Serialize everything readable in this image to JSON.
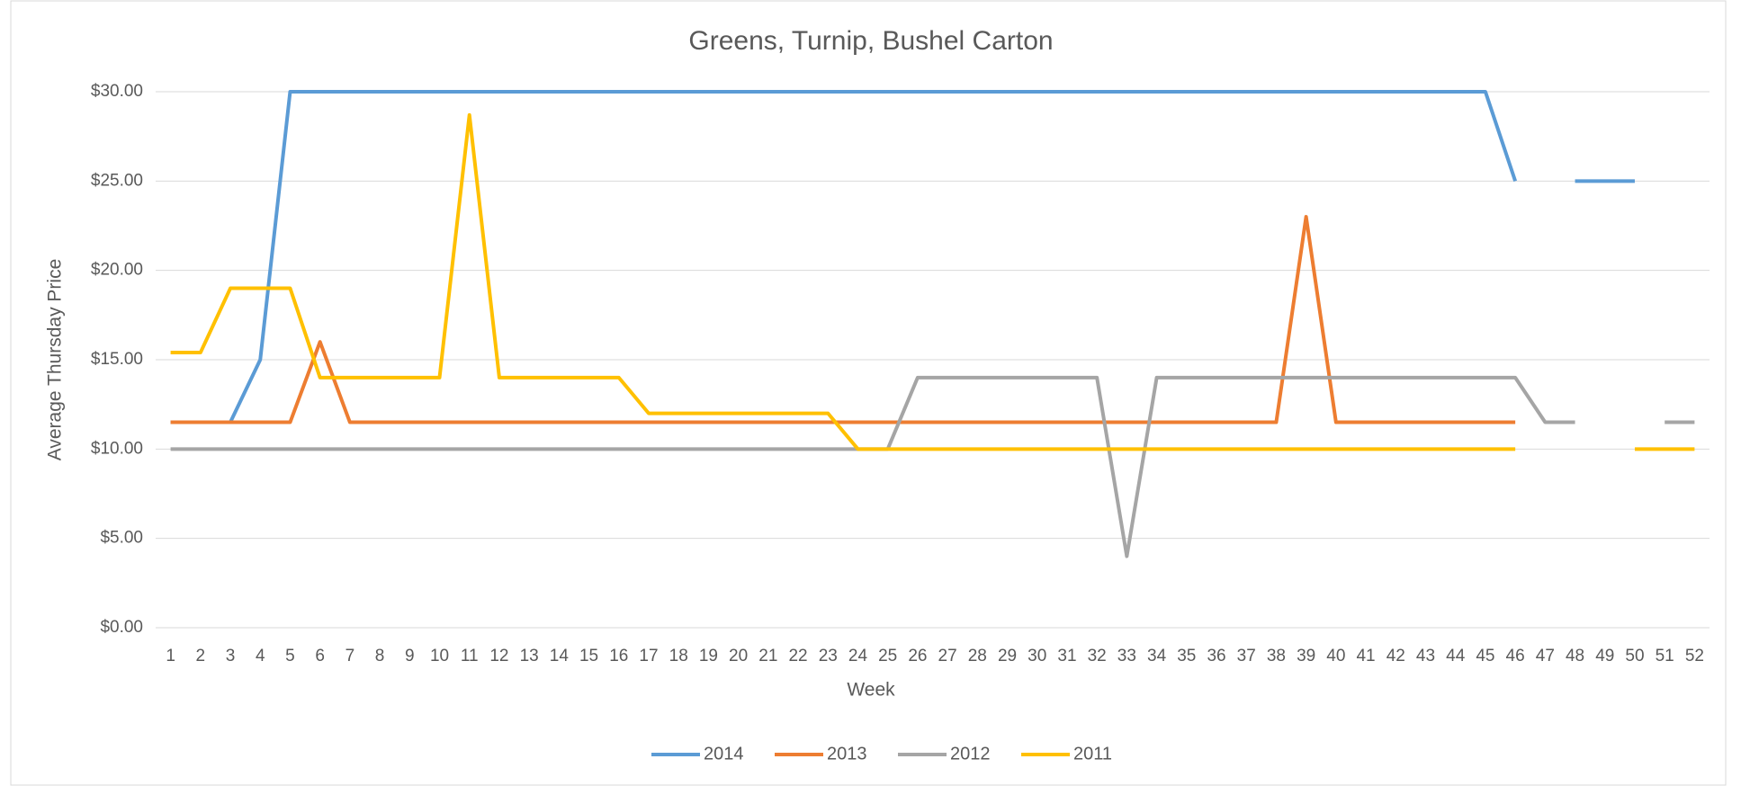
{
  "chart_data": {
    "type": "line",
    "title": "Greens, Turnip, Bushel Carton",
    "x_label": "Week",
    "y_label": "Average Thursday Price",
    "categories": [
      "1",
      "2",
      "3",
      "4",
      "5",
      "6",
      "7",
      "8",
      "9",
      "10",
      "11",
      "12",
      "13",
      "14",
      "15",
      "16",
      "17",
      "18",
      "19",
      "20",
      "21",
      "22",
      "23",
      "24",
      "25",
      "26",
      "27",
      "28",
      "29",
      "30",
      "31",
      "32",
      "33",
      "34",
      "35",
      "36",
      "37",
      "38",
      "39",
      "40",
      "41",
      "42",
      "43",
      "44",
      "45",
      "46",
      "47",
      "48",
      "49",
      "50",
      "51",
      "52"
    ],
    "ylim": [
      0,
      30
    ],
    "yticks": [
      {
        "value": 0,
        "label": "$0.00"
      },
      {
        "value": 5,
        "label": "$5.00"
      },
      {
        "value": 10,
        "label": "$10.00"
      },
      {
        "value": 15,
        "label": "$15.00"
      },
      {
        "value": 20,
        "label": "$20.00"
      },
      {
        "value": 25,
        "label": "$25.00"
      },
      {
        "value": 30,
        "label": "$30.00"
      }
    ],
    "grid": true,
    "legend": "bottom",
    "series": [
      {
        "name": "2014",
        "color": "#5b9bd5",
        "values": [
          11.5,
          11.5,
          11.5,
          15,
          30,
          30,
          30,
          30,
          30,
          30,
          30,
          30,
          30,
          30,
          30,
          30,
          30,
          30,
          30,
          30,
          30,
          30,
          30,
          30,
          30,
          30,
          30,
          30,
          30,
          30,
          30,
          30,
          30,
          30,
          30,
          30,
          30,
          30,
          30,
          30,
          30,
          30,
          30,
          30,
          30,
          25,
          null,
          25,
          25,
          25,
          null,
          null
        ]
      },
      {
        "name": "2013",
        "color": "#ed7d31",
        "values": [
          11.5,
          11.5,
          11.5,
          11.5,
          11.5,
          16,
          11.5,
          11.5,
          11.5,
          11.5,
          11.5,
          11.5,
          11.5,
          11.5,
          11.5,
          11.5,
          11.5,
          11.5,
          11.5,
          11.5,
          11.5,
          11.5,
          11.5,
          11.5,
          11.5,
          11.5,
          11.5,
          11.5,
          11.5,
          11.5,
          11.5,
          11.5,
          11.5,
          11.5,
          11.5,
          11.5,
          11.5,
          11.5,
          23,
          11.5,
          11.5,
          11.5,
          11.5,
          11.5,
          11.5,
          11.5,
          null,
          null,
          null,
          null,
          null,
          null
        ]
      },
      {
        "name": "2012",
        "color": "#a5a5a5",
        "values": [
          10,
          10,
          10,
          10,
          10,
          10,
          10,
          10,
          10,
          10,
          10,
          10,
          10,
          10,
          10,
          10,
          10,
          10,
          10,
          10,
          10,
          10,
          10,
          10,
          10,
          14,
          14,
          14,
          14,
          14,
          14,
          14,
          4,
          14,
          14,
          14,
          14,
          14,
          14,
          14,
          14,
          14,
          14,
          14,
          14,
          14,
          11.5,
          11.5,
          null,
          null,
          11.5,
          11.5
        ]
      },
      {
        "name": "2011",
        "color": "#ffc000",
        "values": [
          15.4,
          15.4,
          19,
          19,
          19,
          14,
          14,
          14,
          14,
          14,
          28.7,
          14,
          14,
          14,
          14,
          14,
          12,
          12,
          12,
          12,
          12,
          12,
          12,
          10,
          10,
          10,
          10,
          10,
          10,
          10,
          10,
          10,
          10,
          10,
          10,
          10,
          10,
          10,
          10,
          10,
          10,
          10,
          10,
          10,
          10,
          10,
          null,
          null,
          null,
          10,
          10,
          10
        ]
      }
    ]
  }
}
